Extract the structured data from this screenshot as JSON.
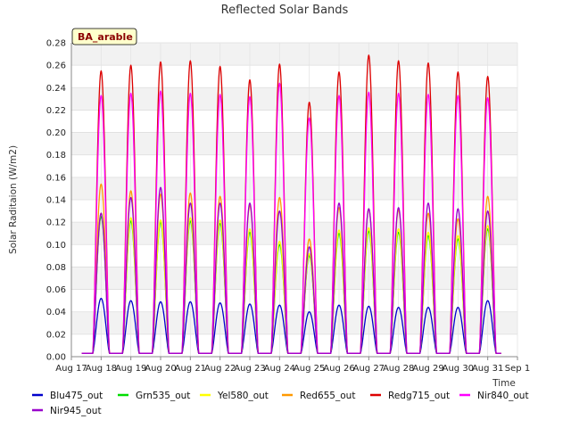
{
  "chart_data": {
    "type": "line",
    "title": "Reflected Solar Bands",
    "xlabel": "Time",
    "ylabel": "Solar Raditaion (W/m2)",
    "badge": "BA_arable",
    "ylim": [
      0,
      0.28
    ],
    "yticks": [
      "0.00",
      "0.02",
      "0.04",
      "0.06",
      "0.08",
      "0.10",
      "0.12",
      "0.14",
      "0.16",
      "0.18",
      "0.20",
      "0.22",
      "0.24",
      "0.26",
      "0.28"
    ],
    "xlim_days": [
      17,
      32
    ],
    "xticks": [
      "Aug 17",
      "Aug 18",
      "Aug 19",
      "Aug 20",
      "Aug 21",
      "Aug 22",
      "Aug 23",
      "Aug 24",
      "Aug 25",
      "Aug 26",
      "Aug 27",
      "Aug 28",
      "Aug 29",
      "Aug 30",
      "Aug 31",
      "Sep 1"
    ],
    "grid": true,
    "legend_position": "bottom",
    "day_centers": [
      "Aug 18",
      "Aug 19",
      "Aug 20",
      "Aug 21",
      "Aug 22",
      "Aug 23",
      "Aug 24",
      "Aug 25",
      "Aug 26",
      "Aug 27",
      "Aug 28",
      "Aug 29",
      "Aug 30",
      "Aug 31"
    ],
    "series": [
      {
        "name": "Blu475_out",
        "color": "#0000cc",
        "peaks": [
          0.052,
          0.05,
          0.049,
          0.049,
          0.048,
          0.047,
          0.046,
          0.04,
          0.046,
          0.045,
          0.044,
          0.044,
          0.044,
          0.05
        ]
      },
      {
        "name": "Grn535_out",
        "color": "#00dd00",
        "peaks": [
          0.125,
          0.121,
          0.12,
          0.121,
          0.119,
          0.111,
          0.1,
          0.09,
          0.11,
          0.112,
          0.111,
          0.108,
          0.105,
          0.114
        ]
      },
      {
        "name": "Yel580_out",
        "color": "#ffff00",
        "peaks": [
          0.128,
          0.124,
          0.122,
          0.124,
          0.122,
          0.114,
          0.103,
          0.092,
          0.113,
          0.115,
          0.114,
          0.111,
          0.108,
          0.117
        ]
      },
      {
        "name": "Red655_out",
        "color": "#ff9900",
        "peaks": [
          0.154,
          0.148,
          0.145,
          0.146,
          0.143,
          0.135,
          0.142,
          0.105,
          0.133,
          0.132,
          0.131,
          0.128,
          0.123,
          0.143
        ]
      },
      {
        "name": "Redg715_out",
        "color": "#dd0000",
        "peaks": [
          0.255,
          0.26,
          0.263,
          0.264,
          0.259,
          0.247,
          0.261,
          0.227,
          0.254,
          0.269,
          0.264,
          0.262,
          0.254,
          0.25
        ]
      },
      {
        "name": "Nir840_out",
        "color": "#ff00ff",
        "peaks": [
          0.233,
          0.235,
          0.237,
          0.235,
          0.234,
          0.232,
          0.244,
          0.213,
          0.233,
          0.236,
          0.235,
          0.234,
          0.233,
          0.231
        ]
      },
      {
        "name": "Nir945_out",
        "color": "#9900cc",
        "peaks": [
          0.128,
          0.142,
          0.151,
          0.137,
          0.137,
          0.137,
          0.13,
          0.098,
          0.137,
          0.132,
          0.133,
          0.137,
          0.132,
          0.13
        ]
      }
    ]
  }
}
